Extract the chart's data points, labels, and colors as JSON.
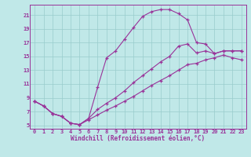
{
  "xlabel": "Windchill (Refroidissement éolien,°C)",
  "bg_color": "#c0e8e8",
  "line_color": "#993399",
  "grid_color": "#99cccc",
  "xlim": [
    -0.5,
    23.5
  ],
  "ylim": [
    4.5,
    22.5
  ],
  "xticks": [
    0,
    1,
    2,
    3,
    4,
    5,
    6,
    7,
    8,
    9,
    10,
    11,
    12,
    13,
    14,
    15,
    16,
    17,
    18,
    19,
    20,
    21,
    22,
    23
  ],
  "yticks": [
    5,
    7,
    9,
    11,
    13,
    15,
    17,
    19,
    21
  ],
  "curve1_x": [
    0,
    1,
    2,
    3,
    4,
    5,
    6,
    7,
    8,
    9,
    10,
    11,
    12,
    13,
    14,
    15,
    16,
    17,
    18,
    19,
    20,
    21,
    22,
    23
  ],
  "curve1_y": [
    8.5,
    7.8,
    6.7,
    6.3,
    5.3,
    5.1,
    6.0,
    10.5,
    14.8,
    15.8,
    17.5,
    19.2,
    20.8,
    21.5,
    21.8,
    21.8,
    21.2,
    20.3,
    17.0,
    16.8,
    15.4,
    15.8,
    15.8,
    15.8
  ],
  "curve2_x": [
    0,
    1,
    2,
    3,
    4,
    5,
    6,
    7,
    8,
    9,
    10,
    11,
    12,
    13,
    14,
    15,
    16,
    17,
    18,
    19,
    20,
    21,
    22,
    23
  ],
  "curve2_y": [
    8.5,
    7.8,
    6.7,
    6.3,
    5.3,
    5.1,
    6.0,
    7.3,
    8.2,
    9.0,
    10.0,
    11.2,
    12.2,
    13.2,
    14.2,
    15.0,
    16.5,
    16.8,
    15.5,
    15.8,
    15.4,
    15.8,
    15.8,
    15.8
  ],
  "curve3_x": [
    0,
    1,
    2,
    3,
    4,
    5,
    6,
    7,
    8,
    9,
    10,
    11,
    12,
    13,
    14,
    15,
    16,
    17,
    18,
    19,
    20,
    21,
    22,
    23
  ],
  "curve3_y": [
    8.5,
    7.8,
    6.7,
    6.3,
    5.3,
    5.1,
    5.8,
    6.5,
    7.2,
    7.8,
    8.5,
    9.2,
    10.0,
    10.8,
    11.5,
    12.2,
    13.0,
    13.8,
    14.0,
    14.5,
    14.8,
    15.2,
    14.8,
    14.5
  ],
  "marker": "+",
  "marker_size": 3,
  "line_width": 0.8,
  "tick_fontsize": 5,
  "label_fontsize": 5.5
}
